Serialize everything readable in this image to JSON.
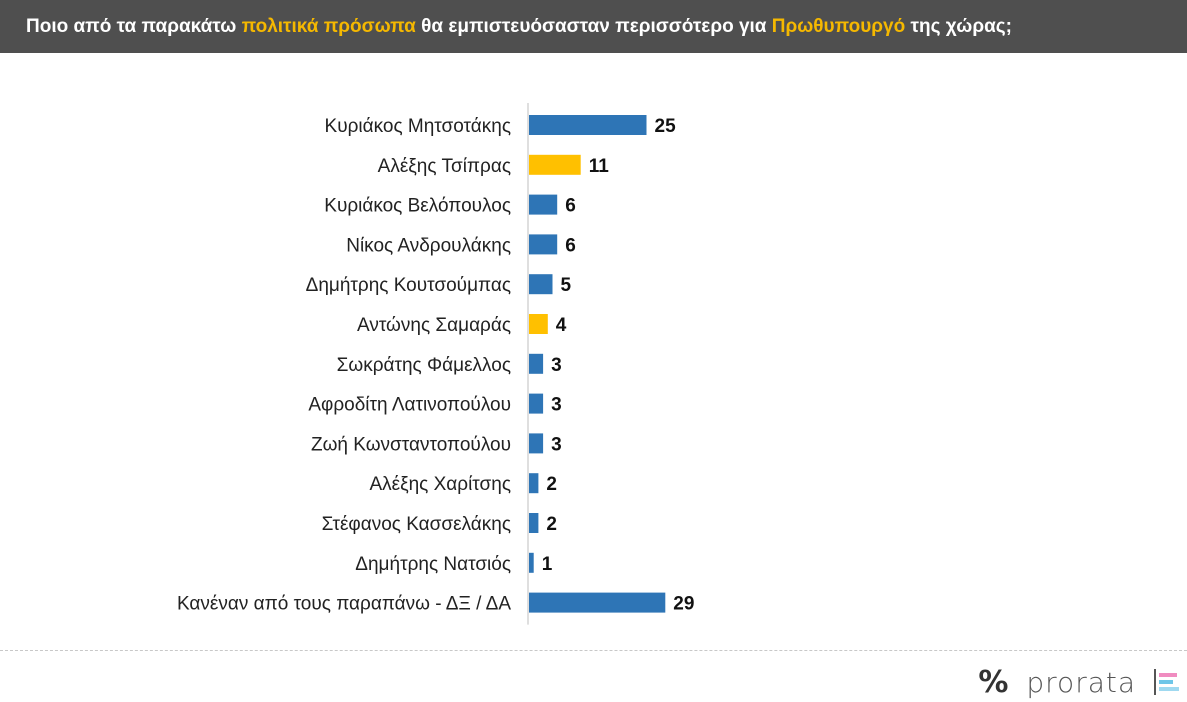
{
  "header": {
    "part1": "Ποιο από τα παρακάτω ",
    "highlight1": "πολιτικά πρόσωπα",
    "part2": " θα εμπιστευόσασταν περισσότερο για ",
    "highlight2": "Πρωθυπουργό",
    "part3": " της χώρας;"
  },
  "chart_data": {
    "type": "bar",
    "orientation": "horizontal",
    "categories": [
      "Κυριάκος Μητσοτάκης",
      "Αλέξης Τσίπρας",
      "Κυριάκος Βελόπουλος",
      "Νίκος Ανδρουλάκης",
      "Δημήτρης Κουτσούμπας",
      "Αντώνης Σαμαράς",
      "Σωκράτης Φάμελλος",
      "Αφροδίτη Λατινοπούλου",
      "Ζωή Κωνσταντοπούλου",
      "Αλέξης Χαρίτσης",
      "Στέφανος Κασσελάκης",
      "Δημήτρης Νατσιός",
      "Κανέναν από τους παραπάνω - ΔΞ / ΔΑ"
    ],
    "values": [
      25,
      11,
      6,
      6,
      5,
      4,
      3,
      3,
      3,
      2,
      2,
      1,
      29
    ],
    "bar_colors": [
      "#2e75b6",
      "#ffc000",
      "#2e75b6",
      "#2e75b6",
      "#2e75b6",
      "#ffc000",
      "#2e75b6",
      "#2e75b6",
      "#2e75b6",
      "#2e75b6",
      "#2e75b6",
      "#2e75b6",
      "#2e75b6"
    ],
    "title": "",
    "xlabel": "",
    "ylabel": "",
    "data_labels": true,
    "grid": false,
    "legend": "none"
  },
  "colors": {
    "header_bg": "#4f4f4f",
    "highlight": "#f5b800",
    "bar_blue": "#2e75b6",
    "bar_yellow": "#ffc000"
  },
  "footer": {
    "icon": "percent-icon",
    "brand": "prorata",
    "brand_stripe_colors": [
      "#f08cc0",
      "#6ec6e8",
      "#9fd9f0"
    ]
  }
}
